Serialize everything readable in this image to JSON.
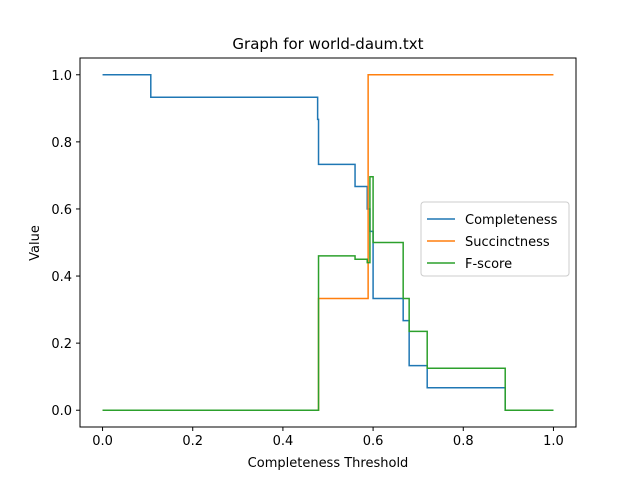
{
  "chart_data": {
    "type": "line",
    "title": "Graph for world-daum.txt",
    "xlabel": "Completeness Threshold",
    "ylabel": "Value",
    "xlim": [
      -0.05,
      1.05
    ],
    "ylim": [
      -0.05,
      1.05
    ],
    "xticks": [
      "0.0",
      "0.2",
      "0.4",
      "0.6",
      "0.8",
      "1.0"
    ],
    "yticks": [
      "0.0",
      "0.2",
      "0.4",
      "0.6",
      "0.8",
      "1.0"
    ],
    "grid": false,
    "legend_position": "center-right",
    "step": "post",
    "series": [
      {
        "name": "Completeness",
        "color": "#1f77b4",
        "x": [
          0.0,
          0.107,
          0.107,
          0.477,
          0.477,
          0.479,
          0.479,
          0.56,
          0.56,
          0.587,
          0.587,
          0.593,
          0.593,
          0.6,
          0.6,
          0.6667,
          0.6667,
          0.68,
          0.68,
          0.72,
          0.72,
          0.893,
          0.893,
          1.0
        ],
        "y": [
          1.0,
          1.0,
          0.933,
          0.933,
          0.867,
          0.867,
          0.733,
          0.733,
          0.667,
          0.667,
          0.6,
          0.6,
          0.533,
          0.533,
          0.333,
          0.333,
          0.267,
          0.267,
          0.133,
          0.133,
          0.067,
          0.067,
          0.0,
          0.0
        ]
      },
      {
        "name": "Succinctness",
        "color": "#ff7f0e",
        "x": [
          0.0,
          0.479,
          0.479,
          0.589,
          0.589,
          1.0
        ],
        "y": [
          0.0,
          0.0,
          0.333,
          0.333,
          1.0,
          1.0
        ]
      },
      {
        "name": "F-score",
        "color": "#2ca02c",
        "x": [
          0.0,
          0.479,
          0.479,
          0.56,
          0.56,
          0.587,
          0.587,
          0.593,
          0.593,
          0.6,
          0.6,
          0.6667,
          0.6667,
          0.68,
          0.68,
          0.72,
          0.72,
          0.893,
          0.893,
          1.0
        ],
        "y": [
          0.0,
          0.0,
          0.46,
          0.46,
          0.45,
          0.45,
          0.44,
          0.44,
          0.696,
          0.696,
          0.5,
          0.5,
          0.333,
          0.333,
          0.235,
          0.235,
          0.125,
          0.125,
          0.0,
          0.0
        ]
      }
    ]
  }
}
